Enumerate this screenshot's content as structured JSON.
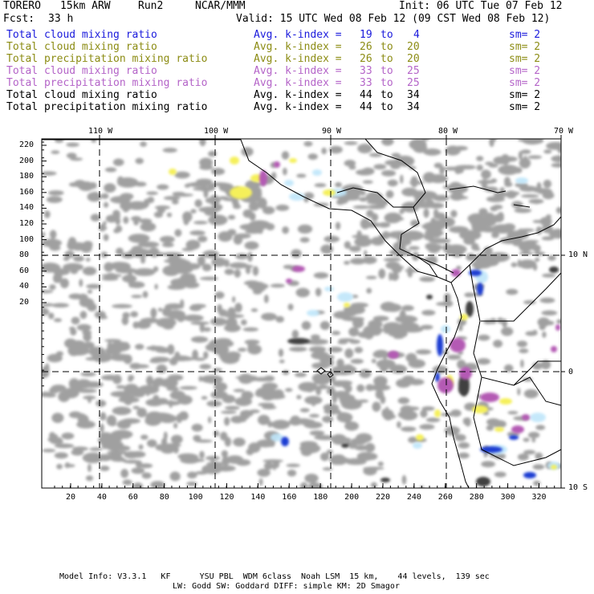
{
  "header": {
    "model": "TORERO",
    "resolution": "15km ARW",
    "run": "Run2",
    "org": "NCAR/MMM",
    "init": "Init: 06 UTC Tue 07 Feb 12",
    "fcst_label": "Fcst:",
    "fcst_value": "33 h",
    "valid": "Valid: 15 UTC Wed 08 Feb 12 (09 CST Wed 08 Feb 12)"
  },
  "legend": [
    {
      "field": "Total cloud mixing ratio",
      "avg": "Avg. k-index =",
      "from": "19",
      "to_word": "to",
      "to": "4",
      "sm": "sm= 2",
      "color": "#1a1adc"
    },
    {
      "field": "Total cloud mixing ratio",
      "avg": "Avg. k-index =",
      "from": "26",
      "to_word": "to",
      "to": "20",
      "sm": "sm= 2",
      "color": "#8c8c14"
    },
    {
      "field": "Total precipitation mixing ratio",
      "avg": "Avg. k-index =",
      "from": "26",
      "to_word": "to",
      "to": "20",
      "sm": "sm= 2",
      "color": "#8c8c14"
    },
    {
      "field": "Total cloud mixing ratio",
      "avg": "Avg. k-index =",
      "from": "33",
      "to_word": "to",
      "to": "25",
      "sm": "sm= 2",
      "color": "#b464c8"
    },
    {
      "field": "Total precipitation mixing ratio",
      "avg": "Avg. k-index =",
      "from": "33",
      "to_word": "to",
      "to": "25",
      "sm": "sm= 2",
      "color": "#b464c8"
    },
    {
      "field": "Total cloud mixing ratio",
      "avg": "Avg. k-index =",
      "from": "44",
      "to_word": "to",
      "to": "34",
      "sm": "sm= 2",
      "color": "#000000"
    },
    {
      "field": "Total precipitation mixing ratio",
      "avg": "Avg. k-index =",
      "from": "44",
      "to_word": "to",
      "to": "34",
      "sm": "sm= 2",
      "color": "#000000"
    }
  ],
  "map": {
    "top_lon_labels": [
      "110 W",
      "100 W",
      "90 W",
      "80 W",
      "70 W"
    ],
    "right_lat_labels": [
      "10 N",
      "0",
      "10 S"
    ],
    "left_ticks": [
      "220",
      "200",
      "180",
      "160",
      "140",
      "120",
      "100",
      "80",
      "60",
      "40",
      "20"
    ],
    "bottom_ticks": [
      "20",
      "40",
      "60",
      "80",
      "100",
      "120",
      "140",
      "160",
      "180",
      "200",
      "220",
      "240",
      "260",
      "280",
      "300",
      "320"
    ],
    "colors": {
      "gray": "#a0a0a0",
      "dark": "#404040",
      "lightblue": "#bfe6fa",
      "blue": "#1e3cd2",
      "yellow": "#f5f05a",
      "purple": "#b45ab4",
      "coast": "#000000"
    }
  },
  "footer": {
    "line1": "Model Info: V3.3.1   KF      YSU PBL  WDM 6class  Noah LSM  15 km,    44 levels,  139 sec",
    "line2": "LW: Godd SW: Goddard DIFF: simple KM: 2D Smagor"
  }
}
